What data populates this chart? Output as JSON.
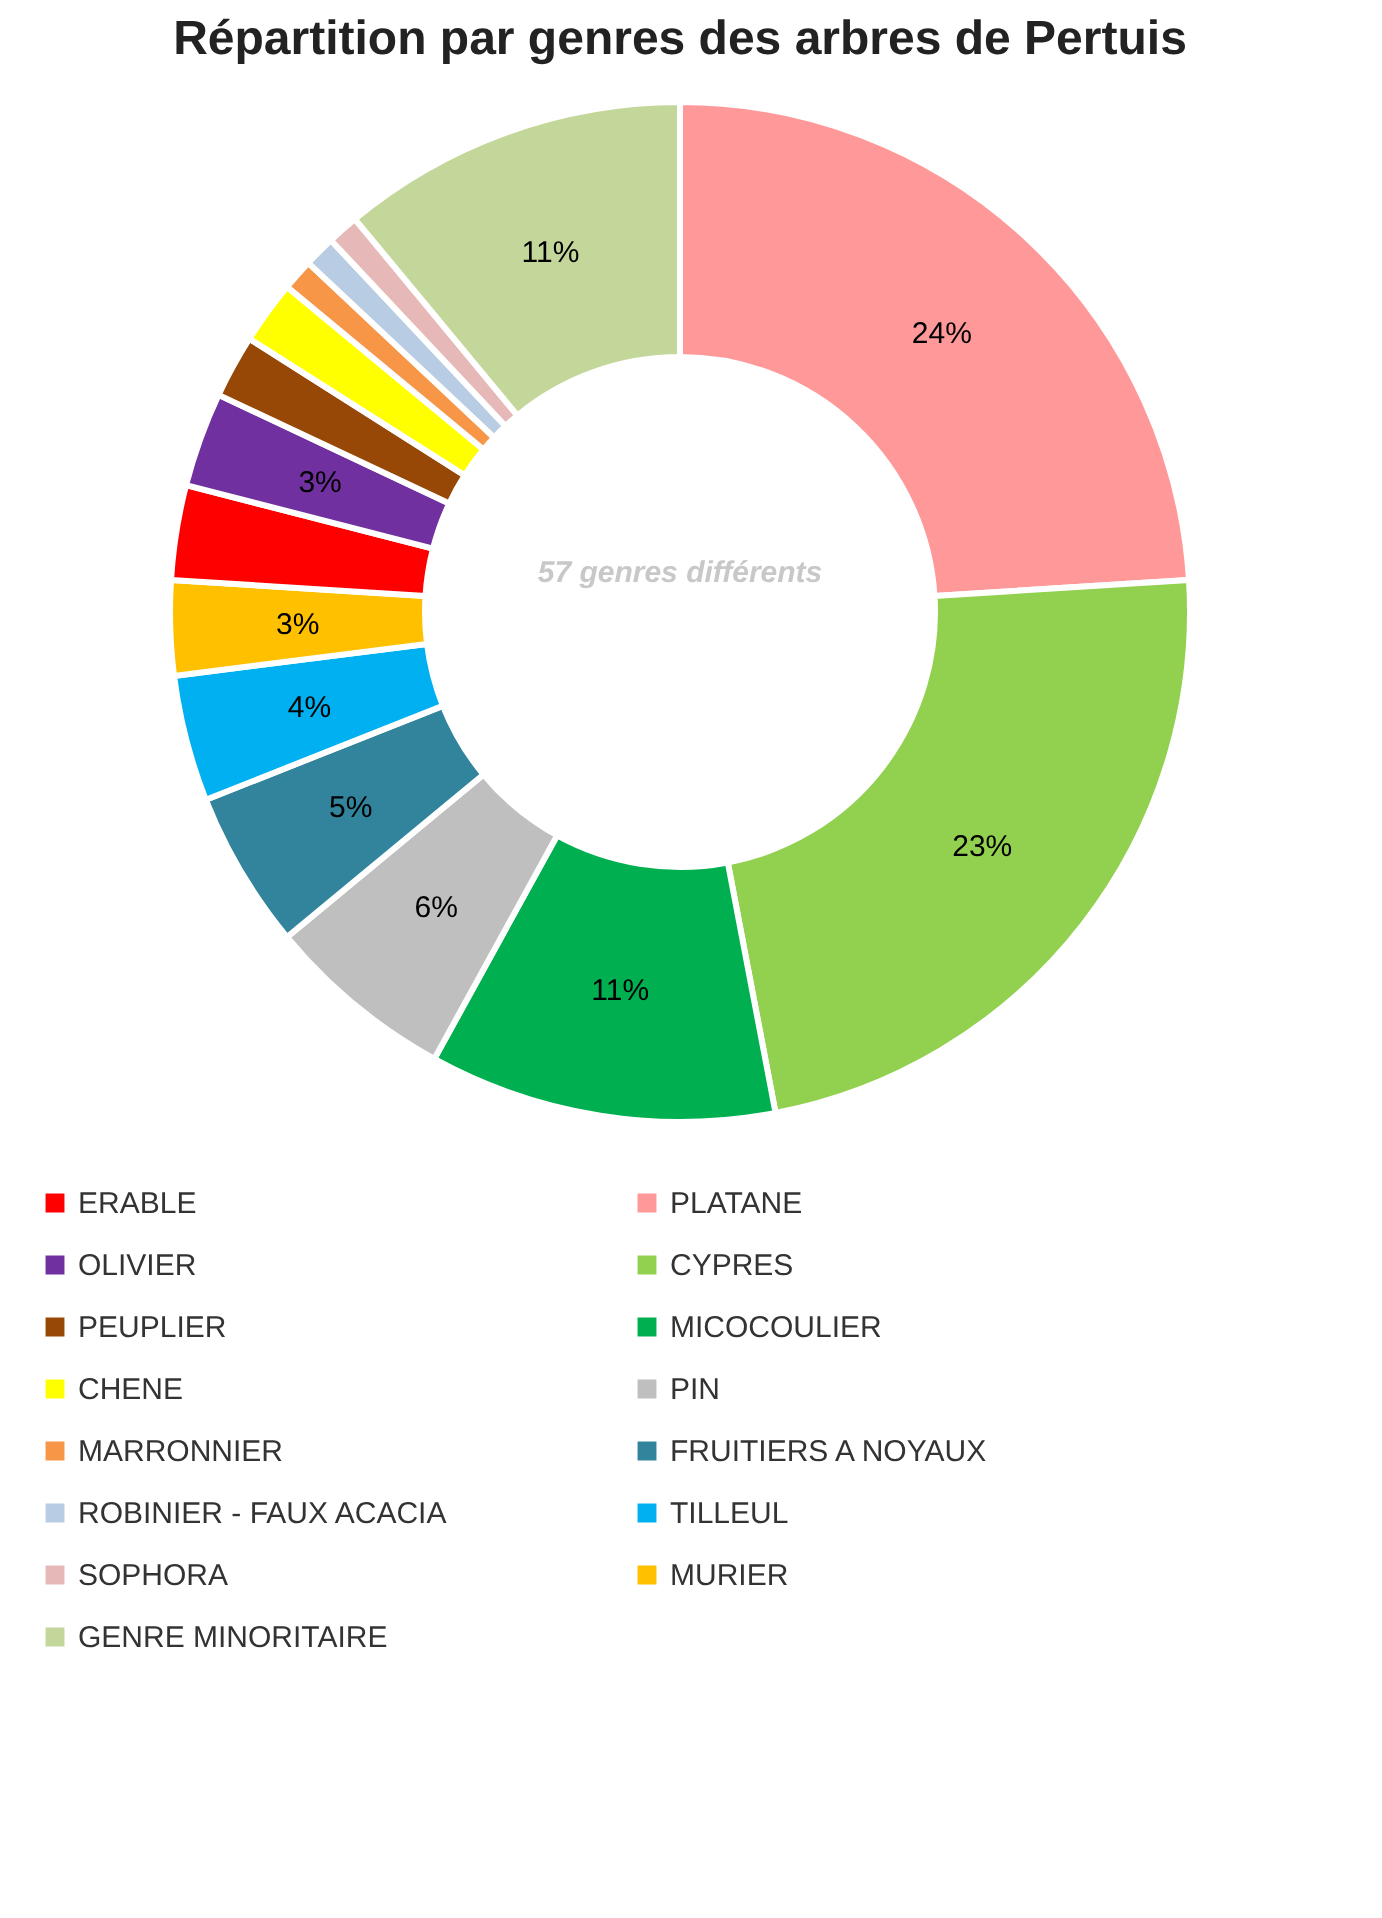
{
  "chart_data": {
    "type": "donut",
    "title": "Répartition par genres des arbres de Pertuis",
    "categories": [
      "PLATANE",
      "CYPRES",
      "MICOCOULIER",
      "PIN",
      "FRUITIERS A NOYAUX",
      "TILLEUL",
      "MURIER",
      "ERABLE",
      "OLIVIER",
      "PEUPLIER",
      "CHENE",
      "MARRONNIER",
      "ROBINIER - FAUX ACACIA",
      "SOPHORA",
      "GENRE MINORITAIRE"
    ],
    "values": [
      24,
      23,
      11,
      6,
      5,
      4,
      3,
      3,
      3,
      2,
      2,
      1,
      1,
      1,
      11
    ],
    "value_labels": [
      "24%",
      "23%",
      "11%",
      "6%",
      "5%",
      "4%",
      "3%",
      null,
      "3%",
      null,
      null,
      null,
      null,
      null,
      "11%"
    ],
    "colors": [
      "#ff9999",
      "#92d050",
      "#00b050",
      "#bfbfbf",
      "#31849b",
      "#00b0f0",
      "#ffc000",
      "#ff0000",
      "#7030a0",
      "#974706",
      "#ffff00",
      "#f79646",
      "#b8cce4",
      "#e6b9b8",
      "#c4d79b"
    ],
    "annotations": [
      "57 genres différents"
    ],
    "legend": "bottom"
  }
}
